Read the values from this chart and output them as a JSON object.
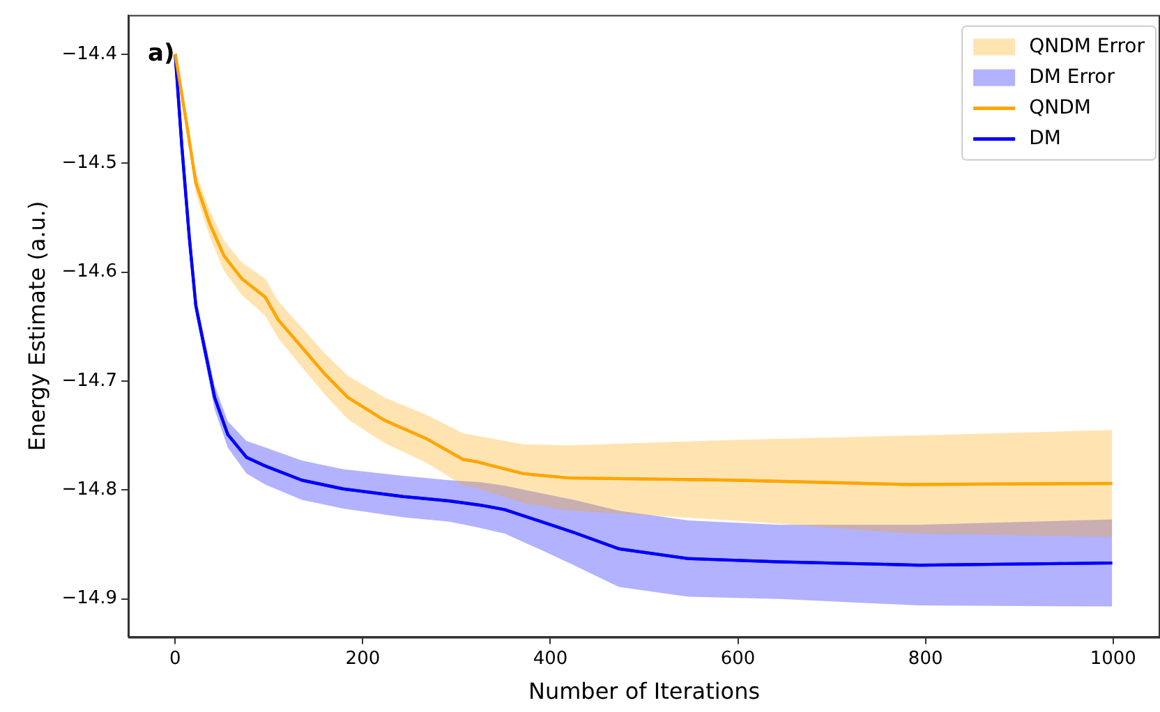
{
  "chart_data": {
    "type": "line",
    "xlabel": "Number of Iterations",
    "ylabel": "Energy Estimate (a.u.)",
    "annotations": [
      "a)"
    ],
    "xlim": [
      -50,
      1050
    ],
    "ylim": [
      -14.935,
      -14.364
    ],
    "xticks": [
      0,
      200,
      400,
      600,
      800,
      1000
    ],
    "yticks": [
      {
        "value": -14.9,
        "label": "−14.9"
      },
      {
        "value": -14.8,
        "label": "−14.8"
      },
      {
        "value": -14.7,
        "label": "−14.7"
      },
      {
        "value": -14.6,
        "label": "−14.6"
      },
      {
        "value": -14.5,
        "label": "−14.5"
      },
      {
        "value": -14.4,
        "label": "−14.4"
      }
    ],
    "grid": false,
    "legend": "top right",
    "marker": "none",
    "line_style": "solid",
    "series": [
      {
        "name": "QNDM Error",
        "color": "#ffa500",
        "x": [
          0,
          12,
          22,
          37,
          52,
          71,
          96,
          110,
          135,
          160,
          184,
          223,
          268,
          307,
          321,
          371,
          420,
          596,
          783,
          999
        ],
        "values": [
          -14.4,
          -14.463,
          -14.518,
          -14.556,
          -14.585,
          -14.606,
          -14.623,
          -14.644,
          -14.669,
          -14.694,
          -14.715,
          -14.736,
          -14.753,
          -14.772,
          -14.774,
          -14.785,
          -14.789,
          -14.791,
          -14.795,
          -14.794
        ],
        "upper": [
          -14.4,
          -14.455,
          -14.508,
          -14.544,
          -14.571,
          -14.591,
          -14.606,
          -14.627,
          -14.651,
          -14.675,
          -14.695,
          -14.715,
          -14.731,
          -14.748,
          -14.75,
          -14.758,
          -14.759,
          -14.754,
          -14.75,
          -14.745
        ],
        "lower": [
          -14.4,
          -14.471,
          -14.528,
          -14.568,
          -14.599,
          -14.621,
          -14.64,
          -14.661,
          -14.687,
          -14.713,
          -14.735,
          -14.757,
          -14.775,
          -14.796,
          -14.798,
          -14.812,
          -14.819,
          -14.828,
          -14.84,
          -14.843
        ]
      },
      {
        "name": "DM Error",
        "color": "#0000ff",
        "x": [
          0,
          7,
          15,
          22,
          32,
          42,
          56,
          76,
          96,
          135,
          179,
          243,
          292,
          326,
          351,
          390,
          425,
          473,
          547,
          645,
          793,
          999
        ],
        "values": [
          -14.4,
          -14.484,
          -14.568,
          -14.631,
          -14.673,
          -14.715,
          -14.749,
          -14.77,
          -14.778,
          -14.791,
          -14.799,
          -14.806,
          -14.81,
          -14.814,
          -14.818,
          -14.829,
          -14.839,
          -14.854,
          -14.863,
          -14.866,
          -14.869,
          -14.867
        ],
        "upper": [
          -14.4,
          -14.48,
          -14.562,
          -14.623,
          -14.664,
          -14.704,
          -14.737,
          -14.755,
          -14.761,
          -14.773,
          -14.781,
          -14.787,
          -14.791,
          -14.793,
          -14.796,
          -14.803,
          -14.809,
          -14.819,
          -14.828,
          -14.832,
          -14.832,
          -14.827
        ],
        "lower": [
          -14.4,
          -14.488,
          -14.574,
          -14.639,
          -14.682,
          -14.726,
          -14.761,
          -14.785,
          -14.795,
          -14.809,
          -14.817,
          -14.825,
          -14.829,
          -14.835,
          -14.84,
          -14.855,
          -14.869,
          -14.889,
          -14.898,
          -14.9,
          -14.906,
          -14.907
        ]
      },
      {
        "name": "QNDM",
        "color": "#ffa500",
        "x": [
          0,
          12,
          22,
          37,
          52,
          71,
          96,
          110,
          135,
          160,
          184,
          223,
          268,
          307,
          321,
          371,
          420,
          596,
          783,
          999
        ],
        "values": [
          -14.4,
          -14.463,
          -14.518,
          -14.556,
          -14.585,
          -14.606,
          -14.623,
          -14.644,
          -14.669,
          -14.694,
          -14.715,
          -14.736,
          -14.753,
          -14.772,
          -14.774,
          -14.785,
          -14.789,
          -14.791,
          -14.795,
          -14.794
        ]
      },
      {
        "name": "DM",
        "color": "#0000ff",
        "x": [
          0,
          7,
          15,
          22,
          32,
          42,
          56,
          76,
          96,
          135,
          179,
          243,
          292,
          326,
          351,
          390,
          425,
          473,
          547,
          645,
          793,
          999
        ],
        "values": [
          -14.4,
          -14.484,
          -14.568,
          -14.631,
          -14.673,
          -14.715,
          -14.749,
          -14.77,
          -14.778,
          -14.791,
          -14.799,
          -14.806,
          -14.81,
          -14.814,
          -14.818,
          -14.829,
          -14.839,
          -14.854,
          -14.863,
          -14.866,
          -14.869,
          -14.867
        ]
      }
    ]
  }
}
